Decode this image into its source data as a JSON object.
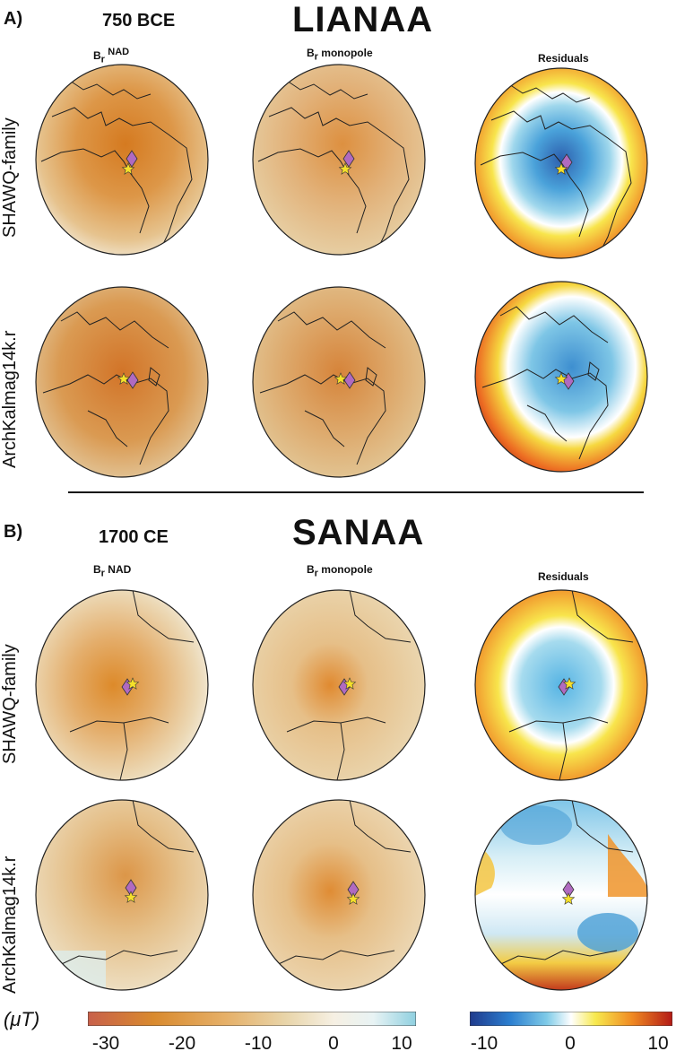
{
  "panel_a": {
    "label": "A)",
    "era": "750 BCE",
    "site": "LIANAA",
    "col_nad_base": "B",
    "col_nad_sub": "r",
    "col_nad_sup": "NAD",
    "col_mono_base": "B",
    "col_mono_sub": "r",
    "col_mono_rest": "monopole",
    "col_residuals": "Residuals",
    "row1_label": "SHAWQ-family",
    "row2_label": "ArchKalmag14k.r"
  },
  "panel_b": {
    "label": "B)",
    "era": "1700 CE",
    "site": "SANAA",
    "col_nad_base": "B",
    "col_nad_sub": "r",
    "col_nad_sup": "NAD",
    "col_mono_base": "B",
    "col_mono_sub": "r",
    "col_mono_rest": "monopole",
    "col_residuals": "Residuals",
    "row1_label": "SHAWQ-family",
    "row2_label": "ArchKalmag14k.r"
  },
  "colorbar_unit": "(μT)",
  "colorbar_left_ticks": [
    "-30",
    "-20",
    "-10",
    "0",
    "10"
  ],
  "colorbar_right_ticks": [
    "-10",
    "0",
    "10"
  ],
  "colors": {
    "strong_orange": "#d9802a",
    "mid_orange": "#e8a658",
    "tan": "#e0c89a",
    "pale": "#f5efe2",
    "light_blue": "#a8dced",
    "blue": "#4aa3d8",
    "dark_blue": "#2a5aa8",
    "yellow": "#f5e24a",
    "red": "#d8331c",
    "dark_red": "#8a1a12",
    "diamond": "#b06ac0",
    "star": "#f5e02a"
  }
}
